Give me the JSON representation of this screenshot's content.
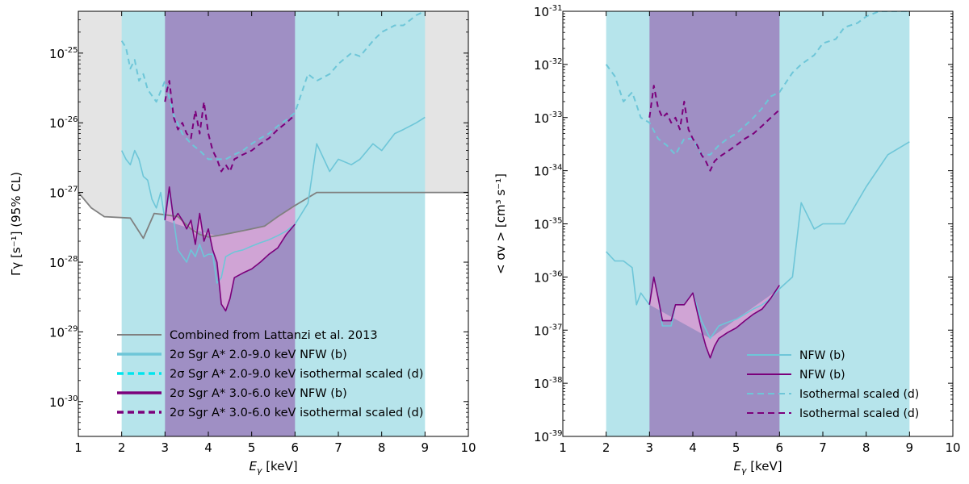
{
  "colors": {
    "cyan": "#6ec6d8",
    "cyan_fill": "#b6e4eb",
    "purple": "#7b007b",
    "purple_band": "#9f8fc4",
    "pink_fill": "#d8a8d8",
    "gray_fill": "#e4e4e4",
    "gray_line": "#808080",
    "cyan_dashed_legend": "#00e5ee"
  },
  "chart_data": [
    {
      "type": "line",
      "panel": "left",
      "xlabel_main": "E",
      "xlabel_sub": "γ",
      "xlabel_unit": " [keV]",
      "ylabel": "Γγ [s⁻¹] (95% CL)",
      "xlim": [
        1,
        10
      ],
      "ylim_log10": [
        -30.5,
        -24.4
      ],
      "x_ticks": [
        "1",
        "2",
        "3",
        "4",
        "5",
        "6",
        "7",
        "8",
        "9",
        "10"
      ],
      "y_tick_base": "10",
      "y_tick_exponents": [
        "-30",
        "-29",
        "-28",
        "-27",
        "-26",
        "-25"
      ],
      "bands": [
        {
          "name": "2σ Sgr A* 2.0-9.0 keV band",
          "x_range": [
            2,
            9
          ],
          "color": "cyan_fill"
        },
        {
          "name": "2σ Sgr A* 3.0-6.0 keV band",
          "x_range": [
            3,
            6
          ],
          "color": "purple_band"
        }
      ],
      "series": [
        {
          "name": "Combined from Lattanzi et al. 2013",
          "style": "solid",
          "color": "gray_line",
          "x": [
            1.0,
            1.3,
            1.6,
            2.2,
            2.5,
            2.75,
            3.0,
            3.3,
            3.6,
            3.8,
            4.0,
            4.2,
            4.5,
            5.0,
            5.3,
            5.6,
            6.0,
            6.5,
            7.0,
            8.0,
            9.0,
            10.0
          ],
          "y": [
            1e-27,
            6e-28,
            4.5e-28,
            4.3e-28,
            2.2e-28,
            5e-28,
            4.8e-28,
            4.5e-28,
            3e-28,
            2.5e-28,
            2.3e-28,
            2.4e-28,
            2.6e-28,
            3e-28,
            3.3e-28,
            4.5e-28,
            6.5e-28,
            1e-27,
            1e-27,
            1e-27,
            1e-27,
            1e-27
          ]
        },
        {
          "name": "2σ Sgr A* 2.0-9.0 keV NFW (b)",
          "style": "solid",
          "color": "cyan",
          "x": [
            2.0,
            2.1,
            2.2,
            2.3,
            2.4,
            2.5,
            2.6,
            2.7,
            2.8,
            2.9,
            3.0,
            3.1,
            3.2,
            3.3,
            3.5,
            3.6,
            3.7,
            3.8,
            3.9,
            4.0,
            4.1,
            4.2,
            4.3,
            4.4,
            4.5,
            4.6,
            4.8,
            5.0,
            5.2,
            5.4,
            5.6,
            5.8,
            6.0,
            6.3,
            6.5,
            6.8,
            7.0,
            7.3,
            7.5,
            7.8,
            8.0,
            8.3,
            8.5,
            8.8,
            9.0
          ],
          "y": [
            4e-27,
            3e-27,
            2.5e-27,
            4e-27,
            3e-27,
            1.7e-27,
            1.5e-27,
            8e-28,
            6e-28,
            1e-27,
            4e-28,
            1e-27,
            4e-28,
            1.5e-28,
            1e-28,
            1.5e-28,
            1.2e-28,
            1.8e-28,
            1.2e-28,
            1.3e-28,
            1.3e-28,
            5e-29,
            6e-29,
            1.2e-28,
            1.3e-28,
            1.4e-28,
            1.5e-28,
            1.7e-28,
            1.9e-28,
            2.1e-28,
            2.4e-28,
            2.8e-28,
            3.5e-28,
            7e-28,
            5e-27,
            2e-27,
            3e-27,
            2.5e-27,
            3e-27,
            5e-27,
            4e-27,
            7e-27,
            8e-27,
            1e-26,
            1.2e-26
          ]
        },
        {
          "name": "2σ Sgr A* 2.0-9.0 keV isothermal scaled (d)",
          "style": "dashed",
          "color": "cyan",
          "x": [
            2.0,
            2.1,
            2.2,
            2.3,
            2.4,
            2.5,
            2.6,
            2.8,
            3.0,
            3.2,
            3.4,
            3.6,
            3.8,
            4.0,
            4.2,
            4.4,
            4.6,
            4.8,
            5.0,
            5.2,
            5.4,
            5.6,
            5.8,
            6.0,
            6.3,
            6.5,
            6.8,
            7.0,
            7.3,
            7.5,
            7.8,
            8.0,
            8.3,
            8.5,
            8.8,
            9.0
          ],
          "y": [
            1.5e-25,
            1.2e-25,
            6e-26,
            8e-26,
            4e-26,
            5e-26,
            3e-26,
            2e-26,
            4e-26,
            1.3e-26,
            7e-27,
            5e-27,
            4e-27,
            3e-27,
            3e-27,
            3e-27,
            3.5e-27,
            4e-27,
            5e-27,
            6e-27,
            7e-27,
            9e-27,
            1.1e-26,
            1.4e-26,
            5e-26,
            4e-26,
            5e-26,
            7e-26,
            1e-25,
            9e-26,
            1.5e-25,
            2e-25,
            2.5e-25,
            2.5e-25,
            3.5e-25,
            4e-25
          ]
        },
        {
          "name": "2σ Sgr A* 3.0-6.0 keV NFW (b)",
          "style": "solid",
          "color": "purple",
          "x": [
            3.0,
            3.1,
            3.2,
            3.3,
            3.4,
            3.5,
            3.6,
            3.7,
            3.8,
            3.9,
            4.0,
            4.1,
            4.2,
            4.3,
            4.4,
            4.5,
            4.6,
            4.8,
            5.0,
            5.2,
            5.4,
            5.6,
            5.8,
            6.0
          ],
          "y": [
            4e-28,
            1.2e-27,
            4e-28,
            5e-28,
            4e-28,
            3e-28,
            4e-28,
            1.8e-28,
            5e-28,
            2e-28,
            3e-28,
            1.5e-28,
            1e-28,
            2.5e-29,
            2e-29,
            3e-29,
            6e-29,
            7e-29,
            8e-29,
            1e-28,
            1.3e-28,
            1.6e-28,
            2.5e-28,
            3.5e-28
          ]
        },
        {
          "name": "2σ Sgr A* 3.0-6.0 keV isothermal scaled (d)",
          "style": "dashed",
          "color": "purple",
          "x": [
            3.0,
            3.05,
            3.1,
            3.2,
            3.3,
            3.4,
            3.5,
            3.6,
            3.7,
            3.8,
            3.9,
            4.0,
            4.1,
            4.2,
            4.3,
            4.4,
            4.5,
            4.6,
            4.8,
            5.0,
            5.2,
            5.4,
            5.6,
            5.8,
            6.0
          ],
          "y": [
            2e-26,
            3e-26,
            4e-26,
            1.2e-26,
            8e-27,
            1e-26,
            7e-27,
            6e-27,
            1.5e-26,
            7e-27,
            2e-26,
            7e-27,
            4e-27,
            3e-27,
            2e-27,
            2.5e-27,
            2e-27,
            3e-27,
            3.5e-27,
            4e-27,
            5e-27,
            6e-27,
            8e-27,
            1e-26,
            1.3e-26
          ]
        }
      ],
      "legend": {
        "placement": "lower-center",
        "entries": [
          {
            "label": "Combined from Lattanzi et al. 2013",
            "color": "gray_line",
            "style": "solid"
          },
          {
            "label": "2σ Sgr A* 2.0-9.0 keV NFW (b)",
            "color": "cyan",
            "style": "solid"
          },
          {
            "label": "2σ Sgr A* 2.0-9.0 keV isothermal scaled (d)",
            "color": "cyan_dashed_legend",
            "style": "dashed"
          },
          {
            "label": "2σ Sgr A* 3.0-6.0 keV NFW (b)",
            "color": "purple",
            "style": "solid"
          },
          {
            "label": "2σ Sgr A* 3.0-6.0 keV isothermal scaled (d)",
            "color": "purple",
            "style": "dashed"
          }
        ]
      }
    },
    {
      "type": "line",
      "panel": "right",
      "xlabel_main": "E",
      "xlabel_sub": "γ",
      "xlabel_unit": " [keV]",
      "ylabel": "< σv > [cm³ s⁻¹]",
      "xlim": [
        1,
        10
      ],
      "ylim_log10": [
        -39,
        -31
      ],
      "x_ticks": [
        "1",
        "2",
        "3",
        "4",
        "5",
        "6",
        "7",
        "8",
        "9",
        "10"
      ],
      "y_tick_base": "10",
      "y_tick_exponents": [
        "-39",
        "-38",
        "-37",
        "-36",
        "-35",
        "-34",
        "-33",
        "-32",
        "-31"
      ],
      "bands": [
        {
          "name": "2.0-9.0 keV band",
          "x_range": [
            2,
            9
          ],
          "color": "cyan_fill"
        },
        {
          "name": "3.0-6.0 keV band",
          "x_range": [
            3,
            6
          ],
          "color": "purple_band"
        }
      ],
      "series": [
        {
          "name": "NFW (b)",
          "style": "solid",
          "color": "cyan",
          "x": [
            2.0,
            2.2,
            2.4,
            2.6,
            2.7,
            2.8,
            3.0,
            3.1,
            3.2,
            3.3,
            3.5,
            3.6,
            3.8,
            4.0,
            4.2,
            4.4,
            4.6,
            4.8,
            5.0,
            5.2,
            5.4,
            5.6,
            5.8,
            6.0,
            6.3,
            6.5,
            6.8,
            7.0,
            7.5,
            8.0,
            8.5,
            9.0
          ],
          "y": [
            3e-36,
            2e-36,
            2e-36,
            1.5e-36,
            3e-37,
            5e-37,
            3e-37,
            1e-36,
            4e-37,
            1.2e-37,
            1.2e-37,
            3e-37,
            3e-37,
            5e-37,
            1.5e-37,
            7e-38,
            1.2e-37,
            1.4e-37,
            1.6e-37,
            2e-37,
            2.5e-37,
            3e-37,
            4e-37,
            6e-37,
            1e-36,
            2.5e-35,
            8e-36,
            1e-35,
            1e-35,
            5e-35,
            2e-34,
            3.5e-34
          ]
        },
        {
          "name": "NFW (b)",
          "style": "solid",
          "color": "purple",
          "x": [
            3.0,
            3.1,
            3.2,
            3.3,
            3.5,
            3.6,
            3.8,
            4.0,
            4.2,
            4.3,
            4.4,
            4.5,
            4.6,
            4.8,
            5.0,
            5.2,
            5.4,
            5.6,
            5.8,
            6.0
          ],
          "y": [
            3e-37,
            1e-36,
            4e-37,
            1.5e-37,
            1.5e-37,
            3e-37,
            3e-37,
            5e-37,
            1e-37,
            5e-38,
            3e-38,
            5e-38,
            7e-38,
            9e-38,
            1.1e-37,
            1.5e-37,
            2e-37,
            2.5e-37,
            4e-37,
            7e-37
          ]
        },
        {
          "name": "Isothermal scaled (d)",
          "style": "dashed",
          "color": "cyan",
          "x": [
            2.0,
            2.2,
            2.4,
            2.6,
            2.8,
            3.0,
            3.2,
            3.4,
            3.6,
            3.8,
            4.0,
            4.2,
            4.4,
            4.6,
            4.8,
            5.0,
            5.2,
            5.4,
            5.6,
            5.8,
            6.0,
            6.3,
            6.5,
            6.8,
            7.0,
            7.3,
            7.5,
            7.8,
            8.0,
            8.3,
            8.5,
            9.0
          ],
          "y": [
            1e-32,
            6e-33,
            2e-33,
            3e-33,
            1e-33,
            8e-34,
            4e-34,
            3e-34,
            2e-34,
            4e-34,
            4e-34,
            2e-34,
            2e-34,
            3e-34,
            4e-34,
            5e-34,
            7e-34,
            1e-33,
            1.5e-33,
            2.5e-33,
            3e-33,
            7e-33,
            1e-32,
            1.5e-32,
            2.5e-32,
            3e-32,
            5e-32,
            6e-32,
            8e-32,
            1e-31,
            1e-31,
            1e-31
          ]
        },
        {
          "name": "Isothermal scaled (d)",
          "style": "dashed",
          "color": "purple",
          "x": [
            3.0,
            3.1,
            3.2,
            3.3,
            3.4,
            3.5,
            3.6,
            3.7,
            3.8,
            3.9,
            4.0,
            4.1,
            4.2,
            4.3,
            4.4,
            4.5,
            4.6,
            4.8,
            5.0,
            5.2,
            5.4,
            5.6,
            5.8,
            6.0
          ],
          "y": [
            1e-33,
            4e-33,
            1.5e-33,
            1e-33,
            1.2e-33,
            8e-34,
            1e-33,
            6e-34,
            2e-33,
            6e-34,
            4e-34,
            3e-34,
            2e-34,
            1.5e-34,
            1e-34,
            1.5e-34,
            1.8e-34,
            2.3e-34,
            3e-34,
            4e-34,
            5e-34,
            7e-34,
            1e-33,
            1.4e-33
          ]
        }
      ],
      "legend": {
        "placement": "lower-right",
        "entries": [
          {
            "label": "NFW (b)",
            "color": "cyan",
            "style": "solid"
          },
          {
            "label": "NFW (b)",
            "color": "purple",
            "style": "solid"
          },
          {
            "label": "Isothermal scaled (d)",
            "color": "cyan",
            "style": "dashed"
          },
          {
            "label": "Isothermal scaled (d)",
            "color": "purple",
            "style": "dashed"
          }
        ]
      }
    }
  ]
}
